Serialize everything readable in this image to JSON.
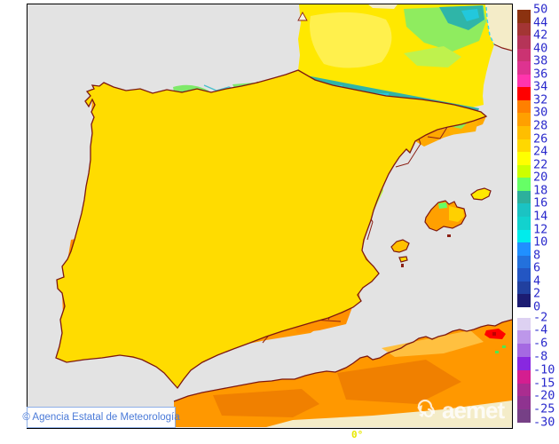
{
  "map": {
    "attribution": "© Agencia Estatal de Meteorología",
    "logo_text": "aemet",
    "bottom_axis_label": "0°",
    "sea_color": "#E3E3E3",
    "border_color": "#8B2015",
    "frame_color": "#000000",
    "nodata_color": "#F4ECC8"
  },
  "scale": {
    "label_color": "#2929CC",
    "upper": {
      "labels": [
        "50",
        "44",
        "42",
        "40",
        "38",
        "36",
        "34",
        "32",
        "30",
        "28",
        "26",
        "24",
        "22",
        "20",
        "18",
        "16",
        "14",
        "12",
        "10",
        "8",
        "6",
        "4",
        "2",
        "0"
      ],
      "colors": [
        "#8B3210",
        "#A33534",
        "#B53458",
        "#CB3372",
        "#DE3390",
        "#FF35AD",
        "#FF0000",
        "#FF8000",
        "#FFA000",
        "#FFBE00",
        "#FFD800",
        "#FFFF00",
        "#CCFF00",
        "#66FF66",
        "#2DB09C",
        "#1BC3C3",
        "#12D2CE",
        "#00ECEC",
        "#2090FF",
        "#2371DC",
        "#2356C3",
        "#21409F",
        "#1C1C72"
      ]
    },
    "lower": {
      "labels": [
        "-2",
        "-4",
        "-6",
        "-8",
        "-10",
        "-15",
        "-20",
        "-25",
        "-30"
      ],
      "colors": [
        "#DDD1F2",
        "#BD97EA",
        "#A569E2",
        "#8828E0",
        "#D41E90",
        "#AA2D90",
        "#8F3390",
        "#764086"
      ]
    }
  }
}
